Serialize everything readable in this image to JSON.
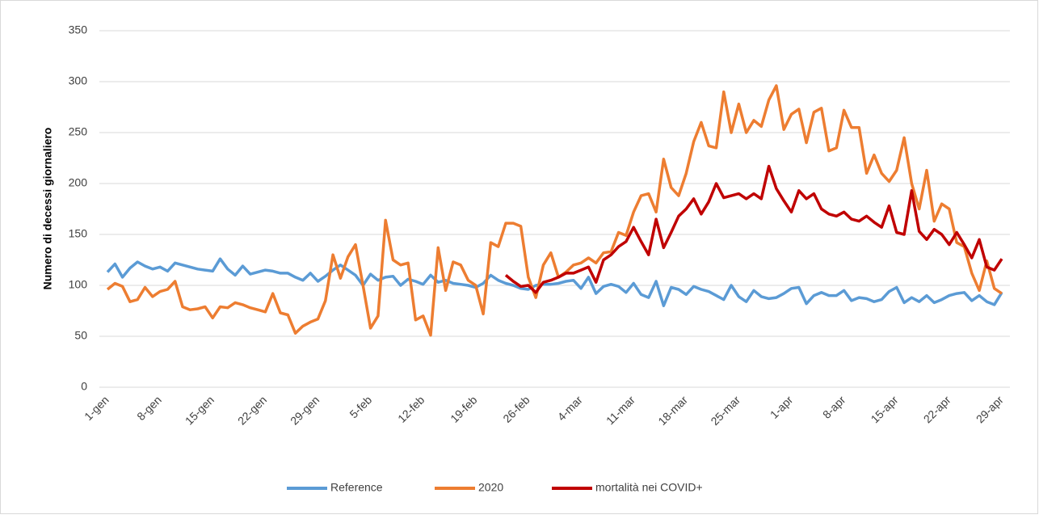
{
  "chart_data": {
    "type": "line",
    "y_label": "Numero di decessi giornaliero",
    "categories": [
      "1-gen",
      null,
      null,
      null,
      null,
      null,
      null,
      "8-gen",
      null,
      null,
      null,
      null,
      null,
      null,
      "15-gen",
      null,
      null,
      null,
      null,
      null,
      null,
      "22-gen",
      null,
      null,
      null,
      null,
      null,
      null,
      "29-gen",
      null,
      null,
      null,
      null,
      null,
      null,
      "5-feb",
      null,
      null,
      null,
      null,
      null,
      null,
      "12-feb",
      null,
      null,
      null,
      null,
      null,
      null,
      "19-feb",
      null,
      null,
      null,
      null,
      null,
      null,
      "26-feb",
      null,
      null,
      null,
      null,
      null,
      null,
      "4-mar",
      null,
      null,
      null,
      null,
      null,
      null,
      "11-mar",
      null,
      null,
      null,
      null,
      null,
      null,
      "18-mar",
      null,
      null,
      null,
      null,
      null,
      null,
      "25-mar",
      null,
      null,
      null,
      null,
      null,
      null,
      "1-apr",
      null,
      null,
      null,
      null,
      null,
      null,
      "8-apr",
      null,
      null,
      null,
      null,
      null,
      null,
      "15-apr",
      null,
      null,
      null,
      null,
      null,
      null,
      "22-apr",
      null,
      null,
      null,
      null,
      null,
      null,
      "29-apr"
    ],
    "series": [
      {
        "name": "Reference",
        "color": "#5b9bd5",
        "values": [
          113,
          121,
          108,
          117,
          123,
          119,
          116,
          118,
          114,
          122,
          120,
          118,
          116,
          115,
          114,
          126,
          116,
          110,
          119,
          111,
          113,
          115,
          114,
          112,
          112,
          108,
          105,
          112,
          104,
          109,
          115,
          120,
          115,
          110,
          100,
          111,
          105,
          108,
          109,
          100,
          106,
          104,
          101,
          110,
          103,
          105,
          102,
          101,
          100,
          98,
          102,
          110,
          105,
          102,
          100,
          97,
          96,
          100,
          101,
          101,
          102,
          104,
          105,
          97,
          108,
          92,
          99,
          101,
          99,
          93,
          102,
          91,
          88,
          104,
          80,
          98,
          96,
          91,
          99,
          96,
          94,
          90,
          86,
          100,
          89,
          84,
          95,
          89,
          87,
          88,
          92,
          97,
          98,
          82,
          90,
          93,
          90,
          90,
          95,
          85,
          88,
          87,
          84,
          86,
          94,
          98,
          83,
          88,
          84,
          90,
          83,
          86,
          90,
          92,
          93,
          85,
          90,
          84,
          81,
          93
        ]
      },
      {
        "name": "2020",
        "color": "#ed7d31",
        "values": [
          96,
          102,
          99,
          84,
          86,
          98,
          89,
          94,
          96,
          104,
          79,
          76,
          77,
          79,
          68,
          79,
          78,
          83,
          81,
          78,
          76,
          74,
          92,
          73,
          71,
          53,
          60,
          64,
          67,
          85,
          130,
          107,
          128,
          140,
          100,
          58,
          70,
          164,
          125,
          120,
          122,
          66,
          70,
          51,
          137,
          95,
          123,
          120,
          105,
          100,
          72,
          142,
          138,
          161,
          161,
          158,
          108,
          88,
          120,
          132,
          108,
          113,
          120,
          122,
          127,
          122,
          132,
          133,
          152,
          149,
          172,
          188,
          190,
          172,
          224,
          196,
          188,
          210,
          241,
          260,
          237,
          235,
          290,
          250,
          278,
          250,
          262,
          256,
          282,
          296,
          253,
          268,
          273,
          240,
          270,
          274,
          232,
          235,
          272,
          255,
          255,
          210,
          228,
          210,
          202,
          213,
          245,
          200,
          175,
          213,
          163,
          180,
          175,
          142,
          138,
          112,
          95,
          124,
          97,
          92
        ]
      },
      {
        "name": "mortalità nei COVID+",
        "color": "#c00000",
        "values": [
          null,
          null,
          null,
          null,
          null,
          null,
          null,
          null,
          null,
          null,
          null,
          null,
          null,
          null,
          null,
          null,
          null,
          null,
          null,
          null,
          null,
          null,
          null,
          null,
          null,
          null,
          null,
          null,
          null,
          null,
          null,
          null,
          null,
          null,
          null,
          null,
          null,
          null,
          null,
          null,
          null,
          null,
          null,
          null,
          null,
          null,
          null,
          null,
          null,
          null,
          null,
          null,
          null,
          110,
          104,
          99,
          100,
          93,
          103,
          105,
          108,
          112,
          112,
          115,
          118,
          103,
          125,
          130,
          138,
          143,
          157,
          143,
          130,
          165,
          137,
          152,
          168,
          175,
          185,
          170,
          182,
          200,
          186,
          188,
          190,
          185,
          190,
          185,
          217,
          195,
          183,
          172,
          193,
          185,
          190,
          175,
          170,
          168,
          172,
          165,
          163,
          168,
          162,
          157,
          178,
          152,
          150,
          193,
          153,
          145,
          155,
          150,
          140,
          152,
          140,
          127,
          145,
          118,
          115,
          126
        ]
      }
    ],
    "ylim": [
      0,
      350
    ],
    "yticks": [
      0,
      50,
      100,
      150,
      200,
      250,
      300,
      350
    ],
    "grid": true,
    "legend": "bottom"
  }
}
